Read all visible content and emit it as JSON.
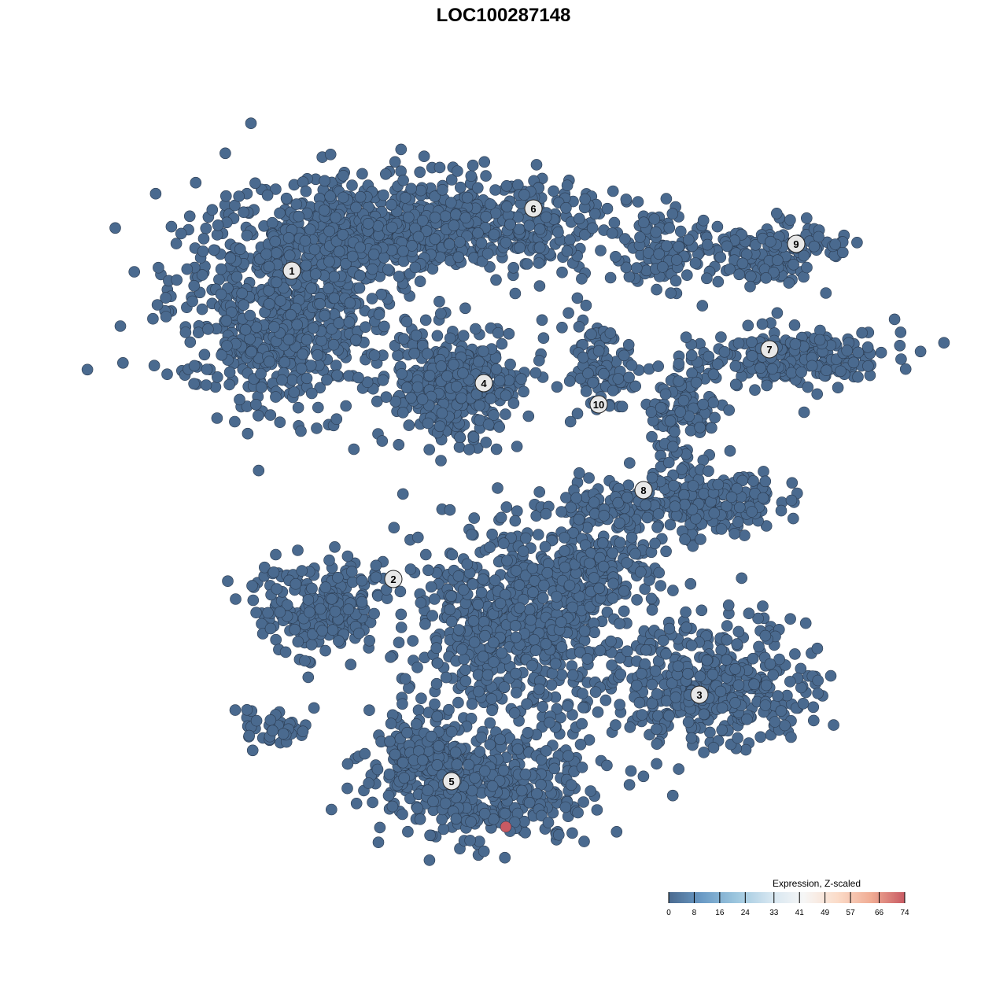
{
  "chart_data": {
    "type": "scatter",
    "title": "LOC100287148",
    "xlabel": "",
    "ylabel": "",
    "grid": false,
    "axes_visible": false,
    "point_fill_low": "#4a6a8f",
    "point_fill_high": "#c85a63",
    "point_stroke": "#2b3b50",
    "clusters": [
      {
        "label": "1"
      },
      {
        "label": "2"
      },
      {
        "label": "3"
      },
      {
        "label": "4"
      },
      {
        "label": "5"
      },
      {
        "label": "6"
      },
      {
        "label": "7"
      },
      {
        "label": "8"
      },
      {
        "label": "9"
      },
      {
        "label": "10"
      }
    ],
    "highlighted_points": [
      {
        "cluster": "5",
        "expression": 74
      }
    ],
    "legend": {
      "title": "Expression, Z-scaled",
      "placement": "bottom-right",
      "ticks": [
        "0",
        "8",
        "16",
        "24",
        "33",
        "41",
        "49",
        "57",
        "66",
        "74"
      ],
      "range": [
        0,
        74
      ],
      "colors": [
        "#4a6a8f",
        "#6b9bc6",
        "#9cc6de",
        "#d4e5f0",
        "#f6f6f6",
        "#fbdcc9",
        "#f0ac94",
        "#c85a63"
      ]
    }
  }
}
